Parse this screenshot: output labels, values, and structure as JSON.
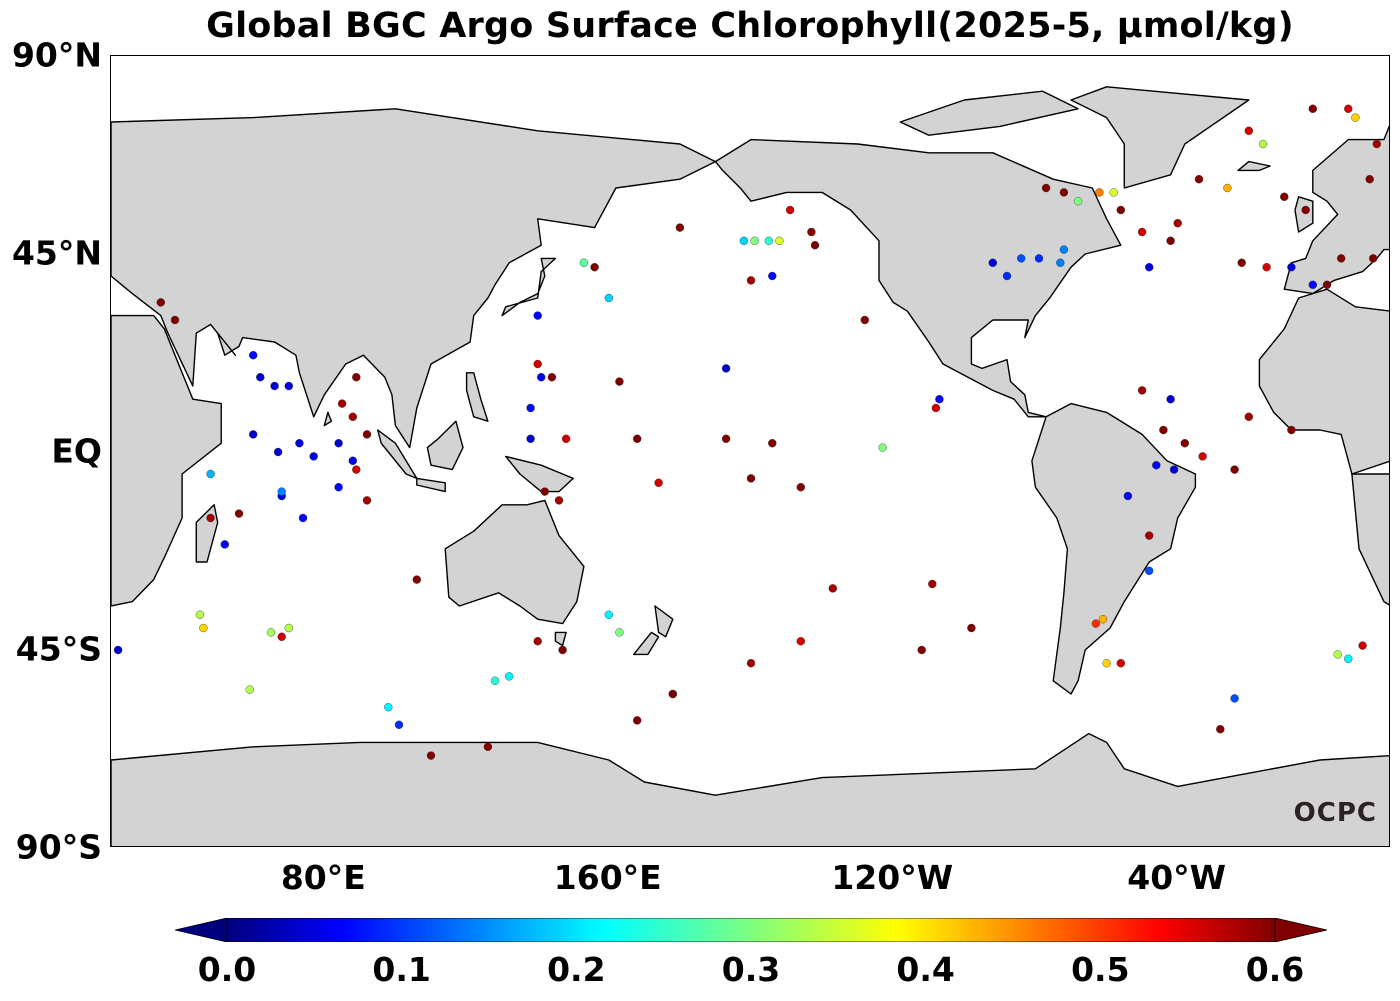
{
  "title": "Global BGC Argo Surface Chlorophyll(2025-5, μmol/kg)",
  "logo": "OCPC",
  "colors": {
    "land": "#d3d3d3",
    "ocean": "#ffffff",
    "coast": "#000000"
  },
  "y_axis": {
    "labels": [
      {
        "text": "90°N",
        "lat": 90
      },
      {
        "text": "45°N",
        "lat": 45
      },
      {
        "text": "EQ",
        "lat": 0
      },
      {
        "text": "45°S",
        "lat": -45
      },
      {
        "text": "90°S",
        "lat": -90
      }
    ]
  },
  "x_axis": {
    "labels": [
      {
        "text": "80°E",
        "lon": 80
      },
      {
        "text": "160°E",
        "lon": 160
      },
      {
        "text": "120°W",
        "lon": -120
      },
      {
        "text": "40°W",
        "lon": -40
      }
    ]
  },
  "map_extent": {
    "lon_min": 20,
    "lon_max": 380,
    "lat_min": -90,
    "lat_max": 90
  },
  "colorbar": {
    "min": 0.0,
    "max": 0.6,
    "colormap": "jet",
    "extend": "both",
    "ticks": [
      "0.0",
      "0.1",
      "0.2",
      "0.3",
      "0.4",
      "0.5",
      "0.6"
    ]
  },
  "chart_data": {
    "type": "scatter",
    "title": "Global BGC Argo Surface Chlorophyll(2025-5, μmol/kg)",
    "x_field": "lon",
    "y_field": "lat",
    "color_field": "chl",
    "points": [
      {
        "lon": 38,
        "lat": 30,
        "chl": 0.6
      },
      {
        "lon": 34,
        "lat": 34,
        "chl": 0.6
      },
      {
        "lon": 60,
        "lat": 22,
        "chl": 0.08
      },
      {
        "lon": 62,
        "lat": 17,
        "chl": 0.05
      },
      {
        "lon": 66,
        "lat": 15,
        "chl": 0.05
      },
      {
        "lon": 70,
        "lat": 15,
        "chl": 0.06
      },
      {
        "lon": 60,
        "lat": 4,
        "chl": 0.04
      },
      {
        "lon": 67,
        "lat": 0,
        "chl": 0.05
      },
      {
        "lon": 73,
        "lat": 2,
        "chl": 0.05
      },
      {
        "lon": 77,
        "lat": -1,
        "chl": 0.06
      },
      {
        "lon": 84,
        "lat": 2,
        "chl": 0.05
      },
      {
        "lon": 88,
        "lat": -2,
        "chl": 0.06
      },
      {
        "lon": 88,
        "lat": 8,
        "chl": 0.58
      },
      {
        "lon": 92,
        "lat": 4,
        "chl": 0.6
      },
      {
        "lon": 89,
        "lat": 17,
        "chl": 0.6
      },
      {
        "lon": 85,
        "lat": 11,
        "chl": 0.58
      },
      {
        "lon": 89,
        "lat": -4,
        "chl": 0.55
      },
      {
        "lon": 92,
        "lat": -11,
        "chl": 0.58
      },
      {
        "lon": 84,
        "lat": -8,
        "chl": 0.08
      },
      {
        "lon": 68,
        "lat": -10,
        "chl": 0.05
      },
      {
        "lon": 74,
        "lat": -15,
        "chl": 0.08
      },
      {
        "lon": 68,
        "lat": -9,
        "chl": 0.15
      },
      {
        "lon": 48,
        "lat": -5,
        "chl": 0.18
      },
      {
        "lon": 48,
        "lat": -15,
        "chl": 0.58
      },
      {
        "lon": 56,
        "lat": -14,
        "chl": 0.6
      },
      {
        "lon": 52,
        "lat": -21,
        "chl": 0.07
      },
      {
        "lon": 45,
        "lat": -37,
        "chl": 0.33
      },
      {
        "lon": 46,
        "lat": -40,
        "chl": 0.4
      },
      {
        "lon": 65,
        "lat": -41,
        "chl": 0.32
      },
      {
        "lon": 68,
        "lat": -42,
        "chl": 0.55
      },
      {
        "lon": 70,
        "lat": -40,
        "chl": 0.33
      },
      {
        "lon": 22,
        "lat": -45,
        "chl": 0.05
      },
      {
        "lon": 59,
        "lat": -54,
        "chl": 0.33
      },
      {
        "lon": 98,
        "lat": -58,
        "chl": 0.22
      },
      {
        "lon": 101,
        "lat": -62,
        "chl": 0.1
      },
      {
        "lon": 106,
        "lat": -29,
        "chl": 0.6
      },
      {
        "lon": 110,
        "lat": -69,
        "chl": 0.6
      },
      {
        "lon": 126,
        "lat": -67,
        "chl": 0.6
      },
      {
        "lon": 128,
        "lat": -52,
        "chl": 0.25
      },
      {
        "lon": 132,
        "lat": -51,
        "chl": 0.22
      },
      {
        "lon": 140,
        "lat": -43,
        "chl": 0.58
      },
      {
        "lon": 147,
        "lat": -45,
        "chl": 0.6
      },
      {
        "lon": 160,
        "lat": -37,
        "chl": 0.22
      },
      {
        "lon": 163,
        "lat": -41,
        "chl": 0.3
      },
      {
        "lon": 168,
        "lat": -61,
        "chl": 0.6
      },
      {
        "lon": 178,
        "lat": -55,
        "chl": 0.6
      },
      {
        "lon": 138,
        "lat": 10,
        "chl": 0.08
      },
      {
        "lon": 141,
        "lat": 17,
        "chl": 0.07
      },
      {
        "lon": 140,
        "lat": 20,
        "chl": 0.55
      },
      {
        "lon": 144,
        "lat": 17,
        "chl": 0.6
      },
      {
        "lon": 138,
        "lat": 3,
        "chl": 0.05
      },
      {
        "lon": 148,
        "lat": 3,
        "chl": 0.55
      },
      {
        "lon": 146,
        "lat": -11,
        "chl": 0.58
      },
      {
        "lon": 142,
        "lat": -9,
        "chl": 0.6
      },
      {
        "lon": 153,
        "lat": 43,
        "chl": 0.28
      },
      {
        "lon": 156,
        "lat": 42,
        "chl": 0.6
      },
      {
        "lon": 140,
        "lat": 31,
        "chl": 0.07
      },
      {
        "lon": 160,
        "lat": 35,
        "chl": 0.2
      },
      {
        "lon": 163,
        "lat": 16,
        "chl": 0.6
      },
      {
        "lon": 168,
        "lat": 3,
        "chl": 0.6
      },
      {
        "lon": 174,
        "lat": -7,
        "chl": 0.55
      },
      {
        "lon": 180,
        "lat": 51,
        "chl": 0.6
      },
      {
        "lon": 193,
        "lat": 19,
        "chl": 0.04
      },
      {
        "lon": 193,
        "lat": 3,
        "chl": 0.6
      },
      {
        "lon": 200,
        "lat": -6,
        "chl": 0.6
      },
      {
        "lon": 206,
        "lat": 2,
        "chl": 0.6
      },
      {
        "lon": 214,
        "lat": -8,
        "chl": 0.6
      },
      {
        "lon": 223,
        "lat": -31,
        "chl": 0.58
      },
      {
        "lon": 200,
        "lat": -48,
        "chl": 0.58
      },
      {
        "lon": 214,
        "lat": -43,
        "chl": 0.55
      },
      {
        "lon": 178,
        "lat": -55,
        "chl": 0.6
      },
      {
        "lon": 198,
        "lat": 48,
        "chl": 0.2
      },
      {
        "lon": 201,
        "lat": 48,
        "chl": 0.3
      },
      {
        "lon": 205,
        "lat": 48,
        "chl": 0.25
      },
      {
        "lon": 208,
        "lat": 48,
        "chl": 0.35
      },
      {
        "lon": 217,
        "lat": 50,
        "chl": 0.6
      },
      {
        "lon": 211,
        "lat": 55,
        "chl": 0.55
      },
      {
        "lon": 200,
        "lat": 39,
        "chl": 0.58
      },
      {
        "lon": 206,
        "lat": 40,
        "chl": 0.08
      },
      {
        "lon": 218,
        "lat": 47,
        "chl": 0.6
      },
      {
        "lon": 232,
        "lat": 30,
        "chl": 0.6
      },
      {
        "lon": 237,
        "lat": 1,
        "chl": 0.3
      },
      {
        "lon": 251,
        "lat": -30,
        "chl": 0.58
      },
      {
        "lon": 248,
        "lat": -45,
        "chl": 0.6
      },
      {
        "lon": 252,
        "lat": 10,
        "chl": 0.55
      },
      {
        "lon": 253,
        "lat": 12,
        "chl": 0.08
      },
      {
        "lon": 262,
        "lat": -40,
        "chl": 0.6
      },
      {
        "lon": 268,
        "lat": 43,
        "chl": 0.05
      },
      {
        "lon": 272,
        "lat": 40,
        "chl": 0.1
      },
      {
        "lon": 276,
        "lat": 44,
        "chl": 0.12
      },
      {
        "lon": 281,
        "lat": 44,
        "chl": 0.1
      },
      {
        "lon": 287,
        "lat": 43,
        "chl": 0.15
      },
      {
        "lon": 288,
        "lat": 46,
        "chl": 0.15
      },
      {
        "lon": 283,
        "lat": 60,
        "chl": 0.6
      },
      {
        "lon": 288,
        "lat": 59,
        "chl": 0.6
      },
      {
        "lon": 292,
        "lat": 57,
        "chl": 0.3
      },
      {
        "lon": 298,
        "lat": 59,
        "chl": 0.45
      },
      {
        "lon": 302,
        "lat": 59,
        "chl": 0.35
      },
      {
        "lon": 304,
        "lat": 55,
        "chl": 0.6
      },
      {
        "lon": 310,
        "lat": 50,
        "chl": 0.55
      },
      {
        "lon": 312,
        "lat": 42,
        "chl": 0.05
      },
      {
        "lon": 318,
        "lat": 48,
        "chl": 0.6
      },
      {
        "lon": 320,
        "lat": 52,
        "chl": 0.58
      },
      {
        "lon": 326,
        "lat": 62,
        "chl": 0.6
      },
      {
        "lon": 334,
        "lat": 60,
        "chl": 0.42
      },
      {
        "lon": 340,
        "lat": 73,
        "chl": 0.55
      },
      {
        "lon": 344,
        "lat": 70,
        "chl": 0.33
      },
      {
        "lon": 350,
        "lat": 58,
        "chl": 0.6
      },
      {
        "lon": 356,
        "lat": 55,
        "chl": 0.6
      },
      {
        "lon": 338,
        "lat": 43,
        "chl": 0.6
      },
      {
        "lon": 345,
        "lat": 42,
        "chl": 0.55
      },
      {
        "lon": 352,
        "lat": 42,
        "chl": 0.05
      },
      {
        "lon": 358,
        "lat": 38,
        "chl": 0.08
      },
      {
        "lon": 362,
        "lat": 38,
        "chl": 0.6
      },
      {
        "lon": 368,
        "lat": 78,
        "chl": 0.55
      },
      {
        "lon": 370,
        "lat": 76,
        "chl": 0.4
      },
      {
        "lon": 358,
        "lat": 78,
        "chl": 0.6
      },
      {
        "lon": 376,
        "lat": 70,
        "chl": 0.58
      },
      {
        "lon": 374,
        "lat": 62,
        "chl": 0.6
      },
      {
        "lon": 310,
        "lat": 14,
        "chl": 0.58
      },
      {
        "lon": 318,
        "lat": 12,
        "chl": 0.05
      },
      {
        "lon": 316,
        "lat": 5,
        "chl": 0.6
      },
      {
        "lon": 322,
        "lat": 2,
        "chl": 0.6
      },
      {
        "lon": 314,
        "lat": -3,
        "chl": 0.07
      },
      {
        "lon": 319,
        "lat": -4,
        "chl": 0.05
      },
      {
        "lon": 327,
        "lat": -1,
        "chl": 0.55
      },
      {
        "lon": 336,
        "lat": -4,
        "chl": 0.6
      },
      {
        "lon": 306,
        "lat": -10,
        "chl": 0.08
      },
      {
        "lon": 312,
        "lat": -19,
        "chl": 0.58
      },
      {
        "lon": 312,
        "lat": -27,
        "chl": 0.12
      },
      {
        "lon": 297,
        "lat": -39,
        "chl": 0.5
      },
      {
        "lon": 299,
        "lat": -38,
        "chl": 0.42
      },
      {
        "lon": 300,
        "lat": -48,
        "chl": 0.4
      },
      {
        "lon": 304,
        "lat": -48,
        "chl": 0.55
      },
      {
        "lon": 336,
        "lat": -56,
        "chl": 0.12
      },
      {
        "lon": 332,
        "lat": -63,
        "chl": 0.6
      },
      {
        "lon": 365,
        "lat": -46,
        "chl": 0.33
      },
      {
        "lon": 368,
        "lat": -47,
        "chl": 0.22
      },
      {
        "lon": 372,
        "lat": -44,
        "chl": 0.55
      },
      {
        "lon": 366,
        "lat": 44,
        "chl": 0.6
      },
      {
        "lon": 375,
        "lat": 44,
        "chl": 0.6
      },
      {
        "lon": 340,
        "lat": 8,
        "chl": 0.58
      },
      {
        "lon": 352,
        "lat": 5,
        "chl": 0.6
      }
    ]
  }
}
